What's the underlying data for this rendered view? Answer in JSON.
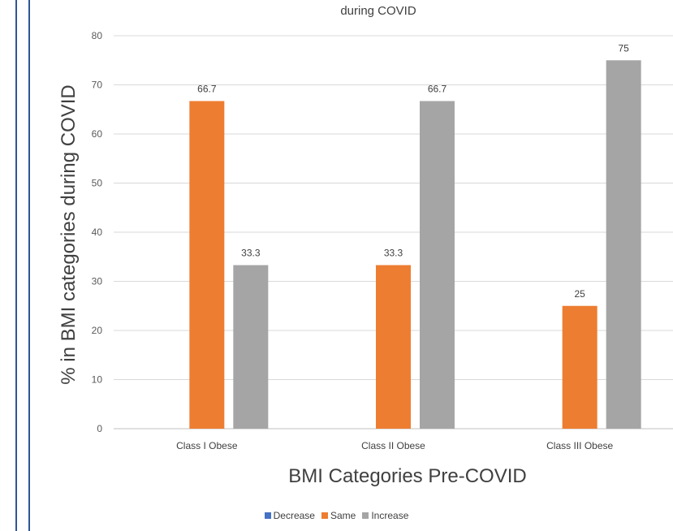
{
  "chart_data": {
    "type": "bar",
    "title": "during COVID",
    "xlabel": "BMI Categories Pre-COVID",
    "ylabel": "% in BMI categories during COVID",
    "categories": [
      "Class I Obese",
      "Class II Obese",
      "Class III Obese"
    ],
    "series": [
      {
        "name": "Decrease",
        "color": "#4472C4",
        "values": [
          0,
          0,
          0
        ],
        "labels": [
          "",
          "",
          ""
        ]
      },
      {
        "name": "Same",
        "color": "#ED7D31",
        "values": [
          66.7,
          33.3,
          25
        ],
        "labels": [
          "66.7",
          "33.3",
          "25"
        ]
      },
      {
        "name": "Increase",
        "color": "#A5A5A5",
        "values": [
          33.3,
          66.7,
          75
        ],
        "labels": [
          "33.3",
          "66.7",
          "75"
        ]
      }
    ],
    "ylim": [
      0,
      80
    ],
    "yticks": [
      "0",
      "10",
      "20",
      "30",
      "40",
      "50",
      "60",
      "70",
      "80"
    ],
    "grid": true,
    "legend_position": "bottom"
  }
}
